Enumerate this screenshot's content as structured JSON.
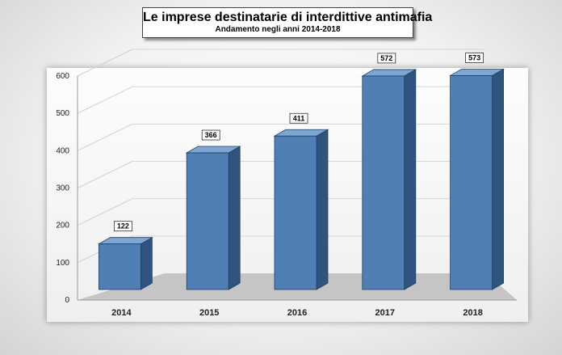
{
  "title": "Le imprese destinatarie di interdittive antimafia",
  "subtitle": "Andamento negli anni 2014-2018",
  "colors": {
    "bar_front": "#4f7fb4",
    "bar_side": "#2f557e",
    "bar_top": "#7ea6d2",
    "bar_edge": "#1f3f66",
    "floor": "#bdbdbd"
  },
  "chart_data": {
    "type": "bar",
    "categories": [
      "2014",
      "2015",
      "2016",
      "2017",
      "2018"
    ],
    "values": [
      122,
      366,
      411,
      572,
      573
    ],
    "data_labels": [
      "122",
      "366",
      "411",
      "572",
      "573"
    ],
    "yticks": [
      "0",
      "100",
      "200",
      "300",
      "400",
      "500",
      "600"
    ],
    "ylim": [
      0,
      600
    ],
    "grid": true,
    "legend": "none",
    "style": "3d"
  }
}
